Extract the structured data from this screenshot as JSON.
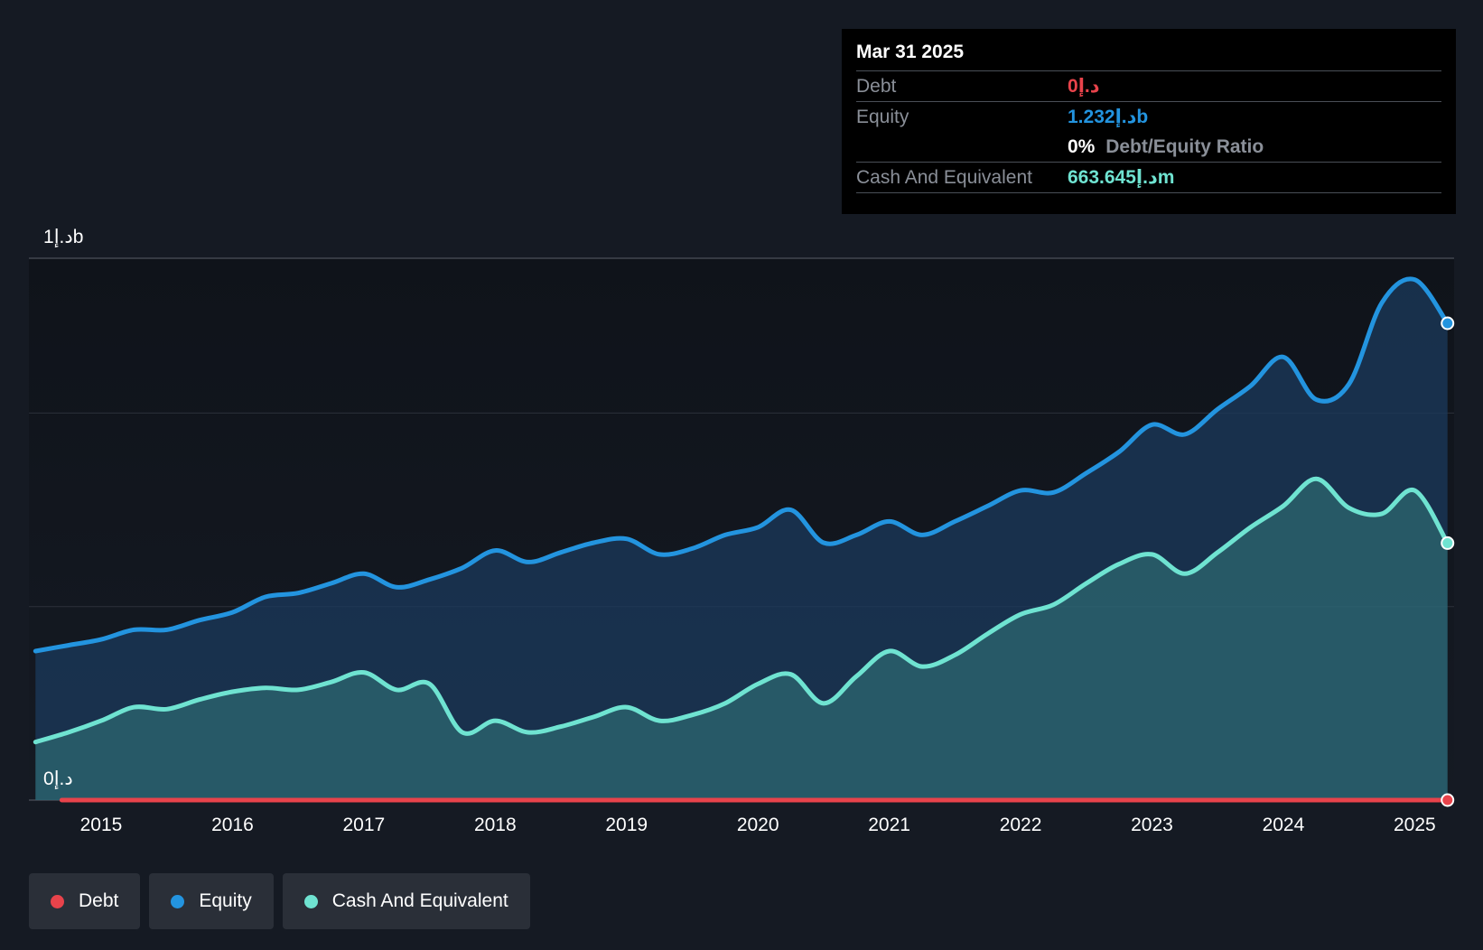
{
  "tooltip": {
    "date": "Mar 31 2025",
    "rows": [
      {
        "label": "Debt",
        "value": "0د.إ",
        "color": "#e8434b"
      },
      {
        "label": "Equity",
        "value": "1.232د.إb",
        "color": "#2394df"
      },
      {
        "label": "Cash And Equivalent",
        "value": "663.645د.إm",
        "color": "#6fe3d1"
      }
    ],
    "ratio": {
      "pct": "0%",
      "label": "Debt/Equity Ratio"
    }
  },
  "legend": [
    {
      "label": "Debt",
      "color": "#e8434b"
    },
    {
      "label": "Equity",
      "color": "#2394df"
    },
    {
      "label": "Cash And Equivalent",
      "color": "#6fe3d1"
    }
  ],
  "chart_data": {
    "type": "area",
    "title": "",
    "xlabel": "",
    "ylabel": "",
    "ylim": [
      0,
      1.4
    ],
    "y_tick_labels": [
      {
        "value": 1.4,
        "label": "1د.إb"
      },
      {
        "value": 0,
        "label": "0د.إ"
      }
    ],
    "x_ticks": [
      2015,
      2016,
      2017,
      2018,
      2019,
      2020,
      2021,
      2022,
      2023,
      2024,
      2025
    ],
    "xlim": [
      2014.45,
      2025.3
    ],
    "series": [
      {
        "name": "Debt",
        "color": "#e8434b",
        "points": [
          [
            2014.7,
            0
          ],
          [
            2015,
            0
          ],
          [
            2017,
            0
          ],
          [
            2019,
            0
          ],
          [
            2021,
            0
          ],
          [
            2023,
            0
          ],
          [
            2025.25,
            0
          ]
        ]
      },
      {
        "name": "Equity",
        "color": "#2394df",
        "points": [
          [
            2014.5,
            0.385
          ],
          [
            2014.75,
            0.4
          ],
          [
            2015.0,
            0.415
          ],
          [
            2015.25,
            0.44
          ],
          [
            2015.5,
            0.44
          ],
          [
            2015.75,
            0.465
          ],
          [
            2016.0,
            0.485
          ],
          [
            2016.25,
            0.525
          ],
          [
            2016.5,
            0.535
          ],
          [
            2016.75,
            0.56
          ],
          [
            2017.0,
            0.585
          ],
          [
            2017.25,
            0.55
          ],
          [
            2017.5,
            0.57
          ],
          [
            2017.75,
            0.6
          ],
          [
            2018.0,
            0.645
          ],
          [
            2018.25,
            0.615
          ],
          [
            2018.5,
            0.64
          ],
          [
            2018.75,
            0.665
          ],
          [
            2019.0,
            0.675
          ],
          [
            2019.25,
            0.635
          ],
          [
            2019.5,
            0.65
          ],
          [
            2019.75,
            0.685
          ],
          [
            2020.0,
            0.705
          ],
          [
            2020.25,
            0.75
          ],
          [
            2020.5,
            0.665
          ],
          [
            2020.75,
            0.685
          ],
          [
            2021.0,
            0.72
          ],
          [
            2021.25,
            0.685
          ],
          [
            2021.5,
            0.72
          ],
          [
            2021.75,
            0.76
          ],
          [
            2022.0,
            0.8
          ],
          [
            2022.25,
            0.795
          ],
          [
            2022.5,
            0.845
          ],
          [
            2022.75,
            0.9
          ],
          [
            2023.0,
            0.97
          ],
          [
            2023.25,
            0.945
          ],
          [
            2023.5,
            1.01
          ],
          [
            2023.75,
            1.07
          ],
          [
            2024.0,
            1.145
          ],
          [
            2024.25,
            1.035
          ],
          [
            2024.5,
            1.075
          ],
          [
            2024.75,
            1.285
          ],
          [
            2025.0,
            1.345
          ],
          [
            2025.25,
            1.232
          ]
        ]
      },
      {
        "name": "Cash And Equivalent",
        "color": "#6fe3d1",
        "points": [
          [
            2014.5,
            0.15
          ],
          [
            2014.75,
            0.175
          ],
          [
            2015.0,
            0.205
          ],
          [
            2015.25,
            0.24
          ],
          [
            2015.5,
            0.235
          ],
          [
            2015.75,
            0.26
          ],
          [
            2016.0,
            0.28
          ],
          [
            2016.25,
            0.29
          ],
          [
            2016.5,
            0.285
          ],
          [
            2016.75,
            0.305
          ],
          [
            2017.0,
            0.33
          ],
          [
            2017.25,
            0.285
          ],
          [
            2017.5,
            0.3
          ],
          [
            2017.75,
            0.175
          ],
          [
            2018.0,
            0.205
          ],
          [
            2018.25,
            0.175
          ],
          [
            2018.5,
            0.19
          ],
          [
            2018.75,
            0.215
          ],
          [
            2019.0,
            0.24
          ],
          [
            2019.25,
            0.205
          ],
          [
            2019.5,
            0.22
          ],
          [
            2019.75,
            0.25
          ],
          [
            2020.0,
            0.3
          ],
          [
            2020.25,
            0.325
          ],
          [
            2020.5,
            0.25
          ],
          [
            2020.75,
            0.32
          ],
          [
            2021.0,
            0.385
          ],
          [
            2021.25,
            0.345
          ],
          [
            2021.5,
            0.375
          ],
          [
            2021.75,
            0.43
          ],
          [
            2022.0,
            0.48
          ],
          [
            2022.25,
            0.505
          ],
          [
            2022.5,
            0.56
          ],
          [
            2022.75,
            0.61
          ],
          [
            2023.0,
            0.635
          ],
          [
            2023.25,
            0.585
          ],
          [
            2023.5,
            0.64
          ],
          [
            2023.75,
            0.705
          ],
          [
            2024.0,
            0.76
          ],
          [
            2024.25,
            0.83
          ],
          [
            2024.5,
            0.755
          ],
          [
            2024.75,
            0.74
          ],
          [
            2025.0,
            0.8
          ],
          [
            2025.25,
            0.664
          ]
        ]
      }
    ],
    "grid": true,
    "legend_position": "bottom-left"
  }
}
